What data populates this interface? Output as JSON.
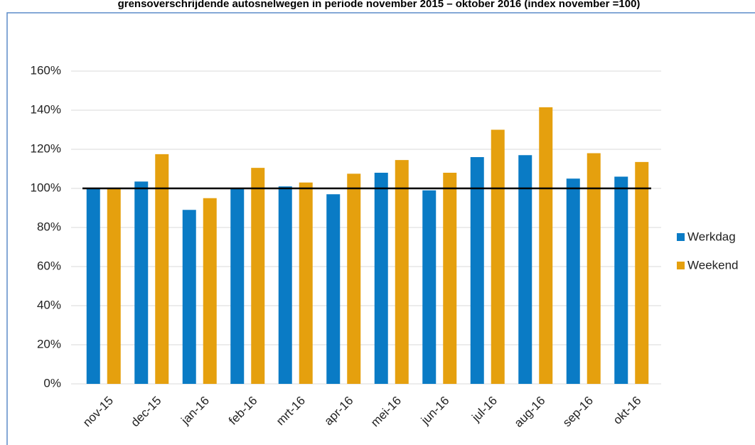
{
  "chart_data": {
    "type": "bar",
    "title": "grensoverschrijdende autosnelwegen in periode november 2015 – oktober 2016 (index november =100)",
    "categories": [
      "nov-15",
      "dec-15",
      "jan-16",
      "feb-16",
      "mrt-16",
      "apr-16",
      "mei-16",
      "jun-16",
      "jul-16",
      "aug-16",
      "sep-16",
      "okt-16"
    ],
    "series": [
      {
        "name": "Werkdag",
        "color": "#0a7bc5",
        "values": [
          100,
          103.5,
          89,
          100,
          101,
          97,
          108,
          99,
          116,
          117,
          105,
          106
        ]
      },
      {
        "name": "Weekend",
        "color": "#e5a00e",
        "values": [
          100,
          117.5,
          95,
          110.5,
          103,
          107.5,
          114.5,
          108,
          130,
          141.5,
          118,
          113.5
        ]
      }
    ],
    "ylim": [
      0,
      160
    ],
    "yticks": [
      {
        "value": 0,
        "label": "0%"
      },
      {
        "value": 20,
        "label": "20%"
      },
      {
        "value": 40,
        "label": "40%"
      },
      {
        "value": 60,
        "label": "60%"
      },
      {
        "value": 80,
        "label": "80%"
      },
      {
        "value": 100,
        "label": "100%"
      },
      {
        "value": 120,
        "label": "120%"
      },
      {
        "value": 140,
        "label": "140%"
      },
      {
        "value": 160,
        "label": "160%"
      }
    ],
    "reference_line": 100,
    "grid": true,
    "legend": "right"
  }
}
